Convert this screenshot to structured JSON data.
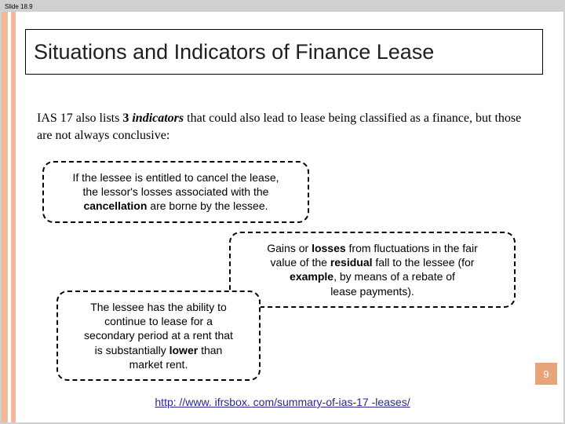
{
  "slide_label": "Slide 18.9",
  "title": "Situations and Indicators of Finance Lease",
  "intro": {
    "prefix": "IAS 17 also lists ",
    "bold1": "3 ",
    "italic_bold": "indicators",
    "rest": " that could also lead to lease being classified as a finance, but those are not always conclusive:"
  },
  "callouts": {
    "c1": {
      "line1": "If the lessee is entitled to cancel the lease,",
      "line2": "the lessor's losses associated with the",
      "bold": "cancellation",
      "line3": " are borne by the lessee."
    },
    "c2": {
      "p1a": "Gains or ",
      "b1": "losses ",
      "p1b": "from fluctuations in the fair",
      "p2a": "value of the ",
      "b2": "residual ",
      "p2b": "fall to the lessee (for",
      "b3": "example",
      "p3": ", by means of a rebate of",
      "p4": "lease payments)."
    },
    "c3": {
      "l1": "The lessee has the ability to",
      "l2": "continue to lease for a",
      "l3": "secondary period at a rent that",
      "l4a": "is substantially ",
      "b": "lower",
      "l4b": " than",
      "l5": "market rent."
    }
  },
  "page_number": "9",
  "footer_link": "http: //www. ifrsbox. com/summary-of-ias-17 -leases/",
  "colors": {
    "stripe": "#f4b89a",
    "pagenum_bg": "#e8a57a",
    "link": "#2a2a8a"
  }
}
